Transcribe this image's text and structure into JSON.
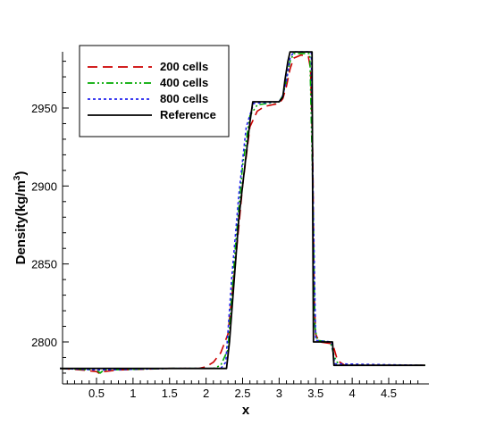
{
  "chart_data": {
    "type": "line",
    "title": "",
    "xlabel": "x",
    "ylabel_main": "Density(kg/m",
    "ylabel_sup": "3",
    "ylabel_close": ")",
    "xlim": [
      0,
      5
    ],
    "ylim": [
      2775,
      2987
    ],
    "xticks": [
      0.5,
      1,
      1.5,
      2,
      2.5,
      3,
      3.5,
      4,
      4.5
    ],
    "xtick_labels": [
      "0.5",
      "1",
      "1.5",
      "2",
      "2.5",
      "3",
      "3.5",
      "4",
      "4.5"
    ],
    "yticks": [
      2800,
      2850,
      2900,
      2950
    ],
    "ytick_labels": [
      "2800",
      "2850",
      "2900",
      "2950"
    ],
    "grid": false,
    "legend_position": "top-left",
    "series": [
      {
        "name": "200 cells",
        "color": "#cc0000",
        "dash": "11,6",
        "points": [
          [
            0,
            2783
          ],
          [
            0.3,
            2782
          ],
          [
            0.5,
            2781
          ],
          [
            0.55,
            2779.5
          ],
          [
            0.6,
            2781
          ],
          [
            0.8,
            2782
          ],
          [
            1.5,
            2783
          ],
          [
            1.9,
            2783
          ],
          [
            2.0,
            2784
          ],
          [
            2.1,
            2787
          ],
          [
            2.2,
            2793
          ],
          [
            2.3,
            2805
          ],
          [
            2.4,
            2850
          ],
          [
            2.5,
            2900
          ],
          [
            2.6,
            2938
          ],
          [
            2.7,
            2948
          ],
          [
            2.8,
            2951
          ],
          [
            2.9,
            2952
          ],
          [
            3.0,
            2953
          ],
          [
            3.05,
            2956
          ],
          [
            3.1,
            2964
          ],
          [
            3.15,
            2975
          ],
          [
            3.2,
            2982
          ],
          [
            3.3,
            2984
          ],
          [
            3.4,
            2983
          ],
          [
            3.43,
            2975
          ],
          [
            3.46,
            2920
          ],
          [
            3.48,
            2830
          ],
          [
            3.5,
            2805
          ],
          [
            3.55,
            2800
          ],
          [
            3.7,
            2799
          ],
          [
            3.75,
            2796
          ],
          [
            3.8,
            2788
          ],
          [
            3.9,
            2785
          ],
          [
            5.0,
            2785
          ]
        ]
      },
      {
        "name": "400 cells",
        "color": "#00aa00",
        "dash": "8,3,2,3,2,3",
        "points": [
          [
            0,
            2783
          ],
          [
            0.5,
            2782
          ],
          [
            0.55,
            2780
          ],
          [
            0.6,
            2782
          ],
          [
            1.5,
            2783
          ],
          [
            2.1,
            2783
          ],
          [
            2.2,
            2785
          ],
          [
            2.3,
            2795
          ],
          [
            2.4,
            2860
          ],
          [
            2.5,
            2913
          ],
          [
            2.6,
            2945
          ],
          [
            2.7,
            2952
          ],
          [
            3.0,
            2954
          ],
          [
            3.05,
            2958
          ],
          [
            3.1,
            2968
          ],
          [
            3.15,
            2980
          ],
          [
            3.2,
            2985
          ],
          [
            3.42,
            2985
          ],
          [
            3.46,
            2900
          ],
          [
            3.49,
            2810
          ],
          [
            3.52,
            2801
          ],
          [
            3.7,
            2800
          ],
          [
            3.76,
            2790
          ],
          [
            3.82,
            2785
          ],
          [
            5.0,
            2785
          ]
        ]
      },
      {
        "name": "800 cells",
        "color": "#2222ee",
        "dash": "3,3",
        "points": [
          [
            0,
            2783
          ],
          [
            0.55,
            2782
          ],
          [
            1.5,
            2783
          ],
          [
            2.2,
            2783
          ],
          [
            2.27,
            2787
          ],
          [
            2.35,
            2840
          ],
          [
            2.45,
            2895
          ],
          [
            2.55,
            2938
          ],
          [
            2.65,
            2953
          ],
          [
            3.0,
            2954
          ],
          [
            3.05,
            2958
          ],
          [
            3.1,
            2968
          ],
          [
            3.15,
            2982
          ],
          [
            3.2,
            2986
          ],
          [
            3.44,
            2986
          ],
          [
            3.47,
            2880
          ],
          [
            3.5,
            2801
          ],
          [
            3.72,
            2800
          ],
          [
            3.76,
            2786
          ],
          [
            5.0,
            2785
          ]
        ]
      },
      {
        "name": "Reference",
        "color": "#000000",
        "dash": "",
        "points": [
          [
            0,
            2783
          ],
          [
            0.55,
            2783
          ],
          [
            1.5,
            2783
          ],
          [
            2.28,
            2783
          ],
          [
            2.32,
            2800
          ],
          [
            2.45,
            2880
          ],
          [
            2.6,
            2941
          ],
          [
            2.64,
            2954
          ],
          [
            3.0,
            2954
          ],
          [
            3.05,
            2957
          ],
          [
            3.08,
            2968
          ],
          [
            3.12,
            2980
          ],
          [
            3.15,
            2986
          ],
          [
            3.45,
            2986
          ],
          [
            3.46,
            2880
          ],
          [
            3.47,
            2800
          ],
          [
            3.73,
            2800
          ],
          [
            3.75,
            2785
          ],
          [
            5.0,
            2785
          ]
        ]
      }
    ]
  }
}
